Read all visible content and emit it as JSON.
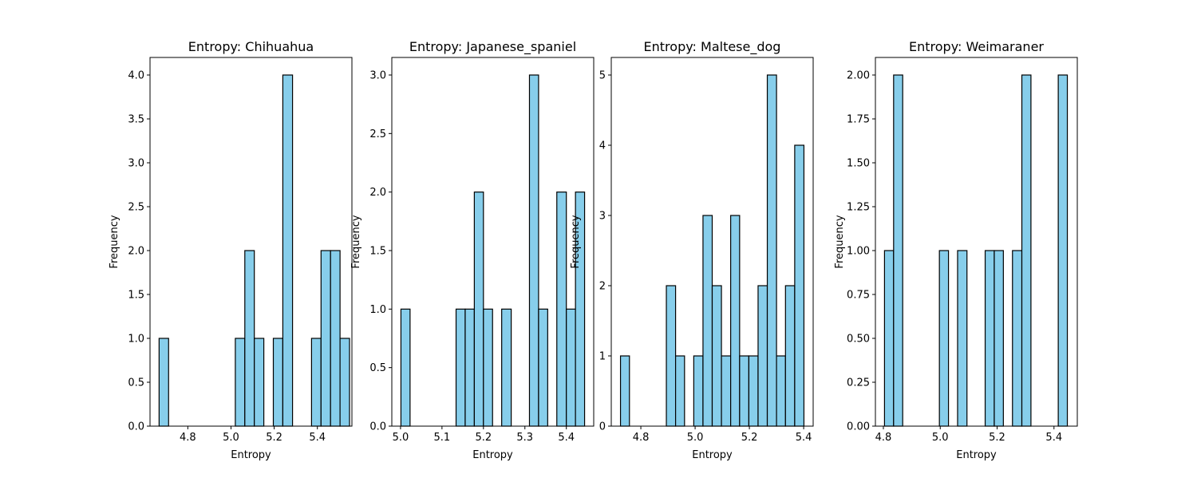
{
  "bar_color": "#87ceeb",
  "edge_color": "#000000",
  "chart_data": [
    {
      "type": "bar",
      "title": "Entropy: Chihuahua",
      "xlabel": "Entropy",
      "ylabel": "Frequency",
      "xlim": [
        4.625,
        5.56
      ],
      "ylim": [
        0,
        4.2
      ],
      "xticks": [
        {
          "value": 4.8,
          "label": "4.8"
        },
        {
          "value": 5.0,
          "label": "5.0"
        },
        {
          "value": 5.2,
          "label": "5.2"
        },
        {
          "value": 5.4,
          "label": "5.4"
        }
      ],
      "yticks": [
        {
          "value": 0,
          "label": "0.0"
        },
        {
          "value": 0.5,
          "label": "0.5"
        },
        {
          "value": 1.0,
          "label": "1.0"
        },
        {
          "value": 1.5,
          "label": "1.5"
        },
        {
          "value": 2.0,
          "label": "2.0"
        },
        {
          "value": 2.5,
          "label": "2.5"
        },
        {
          "value": 3.0,
          "label": "3.0"
        },
        {
          "value": 3.5,
          "label": "3.5"
        },
        {
          "value": 4.0,
          "label": "4.0"
        }
      ],
      "bins": [
        {
          "x0": 4.667,
          "x1": 4.711,
          "count": 1
        },
        {
          "x0": 4.711,
          "x1": 4.755,
          "count": 0
        },
        {
          "x0": 4.755,
          "x1": 4.799,
          "count": 0
        },
        {
          "x0": 4.799,
          "x1": 4.843,
          "count": 0
        },
        {
          "x0": 4.843,
          "x1": 4.887,
          "count": 0
        },
        {
          "x0": 4.887,
          "x1": 4.932,
          "count": 0
        },
        {
          "x0": 4.932,
          "x1": 4.976,
          "count": 0
        },
        {
          "x0": 4.976,
          "x1": 5.02,
          "count": 0
        },
        {
          "x0": 5.02,
          "x1": 5.064,
          "count": 1
        },
        {
          "x0": 5.064,
          "x1": 5.108,
          "count": 2
        },
        {
          "x0": 5.108,
          "x1": 5.152,
          "count": 1
        },
        {
          "x0": 5.152,
          "x1": 5.196,
          "count": 0
        },
        {
          "x0": 5.196,
          "x1": 5.24,
          "count": 1
        },
        {
          "x0": 5.24,
          "x1": 5.285,
          "count": 4
        },
        {
          "x0": 5.285,
          "x1": 5.329,
          "count": 0
        },
        {
          "x0": 5.329,
          "x1": 5.373,
          "count": 0
        },
        {
          "x0": 5.373,
          "x1": 5.417,
          "count": 1
        },
        {
          "x0": 5.417,
          "x1": 5.461,
          "count": 2
        },
        {
          "x0": 5.461,
          "x1": 5.505,
          "count": 2
        },
        {
          "x0": 5.505,
          "x1": 5.549,
          "count": 1
        }
      ]
    },
    {
      "type": "bar",
      "title": "Entropy: Japanese_spaniel",
      "xlabel": "Entropy",
      "ylabel": "Frequency",
      "xlim": [
        4.979,
        5.466
      ],
      "ylim": [
        0,
        3.15
      ],
      "xticks": [
        {
          "value": 5.0,
          "label": "5.0"
        },
        {
          "value": 5.1,
          "label": "5.1"
        },
        {
          "value": 5.2,
          "label": "5.2"
        },
        {
          "value": 5.3,
          "label": "5.3"
        },
        {
          "value": 5.4,
          "label": "5.4"
        }
      ],
      "yticks": [
        {
          "value": 0,
          "label": "0.0"
        },
        {
          "value": 0.5,
          "label": "0.5"
        },
        {
          "value": 1.0,
          "label": "1.0"
        },
        {
          "value": 1.5,
          "label": "1.5"
        },
        {
          "value": 2.0,
          "label": "2.0"
        },
        {
          "value": 2.5,
          "label": "2.5"
        },
        {
          "value": 3.0,
          "label": "3.0"
        }
      ],
      "bins": [
        {
          "x0": 5.001,
          "x1": 5.023,
          "count": 1
        },
        {
          "x0": 5.023,
          "x1": 5.045,
          "count": 0
        },
        {
          "x0": 5.045,
          "x1": 5.067,
          "count": 0
        },
        {
          "x0": 5.067,
          "x1": 5.089,
          "count": 0
        },
        {
          "x0": 5.089,
          "x1": 5.112,
          "count": 0
        },
        {
          "x0": 5.112,
          "x1": 5.134,
          "count": 0
        },
        {
          "x0": 5.134,
          "x1": 5.156,
          "count": 1
        },
        {
          "x0": 5.156,
          "x1": 5.178,
          "count": 1
        },
        {
          "x0": 5.178,
          "x1": 5.2,
          "count": 2
        },
        {
          "x0": 5.2,
          "x1": 5.222,
          "count": 1
        },
        {
          "x0": 5.222,
          "x1": 5.244,
          "count": 0
        },
        {
          "x0": 5.244,
          "x1": 5.267,
          "count": 1
        },
        {
          "x0": 5.267,
          "x1": 5.289,
          "count": 0
        },
        {
          "x0": 5.289,
          "x1": 5.311,
          "count": 0
        },
        {
          "x0": 5.311,
          "x1": 5.333,
          "count": 3
        },
        {
          "x0": 5.333,
          "x1": 5.355,
          "count": 1
        },
        {
          "x0": 5.355,
          "x1": 5.377,
          "count": 0
        },
        {
          "x0": 5.377,
          "x1": 5.4,
          "count": 2
        },
        {
          "x0": 5.4,
          "x1": 5.422,
          "count": 1
        },
        {
          "x0": 5.422,
          "x1": 5.444,
          "count": 2
        }
      ]
    },
    {
      "type": "bar",
      "title": "Entropy: Maltese_dog",
      "xlabel": "Entropy",
      "ylabel": "Frequency",
      "xlim": [
        4.691,
        5.435
      ],
      "ylim": [
        0,
        5.25
      ],
      "xticks": [
        {
          "value": 4.8,
          "label": "4.8"
        },
        {
          "value": 5.0,
          "label": "5.0"
        },
        {
          "value": 5.2,
          "label": "5.2"
        },
        {
          "value": 5.4,
          "label": "5.4"
        }
      ],
      "yticks": [
        {
          "value": 0,
          "label": "0"
        },
        {
          "value": 1,
          "label": "1"
        },
        {
          "value": 2,
          "label": "2"
        },
        {
          "value": 3,
          "label": "3"
        },
        {
          "value": 4,
          "label": "4"
        },
        {
          "value": 5,
          "label": "5"
        }
      ],
      "bins": [
        {
          "x0": 4.725,
          "x1": 4.758,
          "count": 1
        },
        {
          "x0": 4.758,
          "x1": 4.792,
          "count": 0
        },
        {
          "x0": 4.792,
          "x1": 4.826,
          "count": 0
        },
        {
          "x0": 4.826,
          "x1": 4.86,
          "count": 0
        },
        {
          "x0": 4.86,
          "x1": 4.894,
          "count": 0
        },
        {
          "x0": 4.894,
          "x1": 4.928,
          "count": 2
        },
        {
          "x0": 4.928,
          "x1": 4.961,
          "count": 1
        },
        {
          "x0": 4.961,
          "x1": 4.995,
          "count": 0
        },
        {
          "x0": 4.995,
          "x1": 5.029,
          "count": 1
        },
        {
          "x0": 5.029,
          "x1": 5.063,
          "count": 3
        },
        {
          "x0": 5.063,
          "x1": 5.097,
          "count": 2
        },
        {
          "x0": 5.097,
          "x1": 5.131,
          "count": 1
        },
        {
          "x0": 5.131,
          "x1": 5.164,
          "count": 3
        },
        {
          "x0": 5.164,
          "x1": 5.198,
          "count": 1
        },
        {
          "x0": 5.198,
          "x1": 5.232,
          "count": 1
        },
        {
          "x0": 5.232,
          "x1": 5.266,
          "count": 2
        },
        {
          "x0": 5.266,
          "x1": 5.3,
          "count": 5
        },
        {
          "x0": 5.3,
          "x1": 5.333,
          "count": 1
        },
        {
          "x0": 5.333,
          "x1": 5.367,
          "count": 2
        },
        {
          "x0": 5.367,
          "x1": 5.401,
          "count": 4
        }
      ]
    },
    {
      "type": "bar",
      "title": "Entropy: Weimaraner",
      "xlabel": "Entropy",
      "ylabel": "Frequency",
      "xlim": [
        4.772,
        5.482
      ],
      "ylim": [
        0,
        2.1
      ],
      "xticks": [
        {
          "value": 4.8,
          "label": "4.8"
        },
        {
          "value": 5.0,
          "label": "5.0"
        },
        {
          "value": 5.2,
          "label": "5.2"
        },
        {
          "value": 5.4,
          "label": "5.4"
        }
      ],
      "yticks": [
        {
          "value": 0,
          "label": "0.00"
        },
        {
          "value": 0.25,
          "label": "0.25"
        },
        {
          "value": 0.5,
          "label": "0.50"
        },
        {
          "value": 0.75,
          "label": "0.75"
        },
        {
          "value": 1.0,
          "label": "1.00"
        },
        {
          "value": 1.25,
          "label": "1.25"
        },
        {
          "value": 1.5,
          "label": "1.50"
        },
        {
          "value": 1.75,
          "label": "1.75"
        },
        {
          "value": 2.0,
          "label": "2.00"
        }
      ],
      "bins": [
        {
          "x0": 4.804,
          "x1": 4.836,
          "count": 1
        },
        {
          "x0": 4.836,
          "x1": 4.868,
          "count": 2
        },
        {
          "x0": 4.868,
          "x1": 4.9,
          "count": 0
        },
        {
          "x0": 4.9,
          "x1": 4.933,
          "count": 0
        },
        {
          "x0": 4.933,
          "x1": 4.965,
          "count": 0
        },
        {
          "x0": 4.965,
          "x1": 4.997,
          "count": 0
        },
        {
          "x0": 4.997,
          "x1": 5.029,
          "count": 1
        },
        {
          "x0": 5.029,
          "x1": 5.061,
          "count": 0
        },
        {
          "x0": 5.061,
          "x1": 5.094,
          "count": 1
        },
        {
          "x0": 5.094,
          "x1": 5.126,
          "count": 0
        },
        {
          "x0": 5.126,
          "x1": 5.158,
          "count": 0
        },
        {
          "x0": 5.158,
          "x1": 5.19,
          "count": 1
        },
        {
          "x0": 5.19,
          "x1": 5.222,
          "count": 1
        },
        {
          "x0": 5.222,
          "x1": 5.254,
          "count": 0
        },
        {
          "x0": 5.254,
          "x1": 5.287,
          "count": 1
        },
        {
          "x0": 5.287,
          "x1": 5.319,
          "count": 2
        },
        {
          "x0": 5.319,
          "x1": 5.351,
          "count": 0
        },
        {
          "x0": 5.351,
          "x1": 5.383,
          "count": 0
        },
        {
          "x0": 5.383,
          "x1": 5.415,
          "count": 0
        },
        {
          "x0": 5.415,
          "x1": 5.447,
          "count": 2
        }
      ]
    }
  ]
}
